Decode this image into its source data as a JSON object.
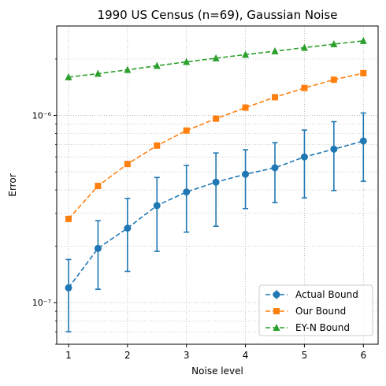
{
  "chart_data": {
    "type": "line",
    "title": "1990 US Census (n=69), Gaussian Noise",
    "xlabel": "Noise level",
    "ylabel": "Error",
    "yscale": "log",
    "xlim": [
      0.8,
      6.25
    ],
    "ylim": [
      6e-08,
      3e-06
    ],
    "grid": "both (major and minor, dotted)",
    "legend_placement": "lower-right",
    "x": [
      1.0,
      1.5,
      2.0,
      2.5,
      3.0,
      3.5,
      4.0,
      4.5,
      5.0,
      5.5,
      6.0
    ],
    "xticks": [
      {
        "value": 1,
        "label": "1"
      },
      {
        "value": 2,
        "label": "2"
      },
      {
        "value": 3,
        "label": "3"
      },
      {
        "value": 4,
        "label": "4"
      },
      {
        "value": 5,
        "label": "5"
      },
      {
        "value": 6,
        "label": "6"
      }
    ],
    "yticks": [
      {
        "value": 1e-07,
        "label": "10⁻⁷"
      },
      {
        "value": 1e-06,
        "label": "10⁻⁶"
      }
    ],
    "series": [
      {
        "name": "Actual Bound",
        "color": "#1f77b4",
        "marker": "circle",
        "values": [
          1.2e-07,
          1.95e-07,
          2.5e-07,
          3.3e-07,
          3.9e-07,
          4.4e-07,
          4.85e-07,
          5.25e-07,
          6e-07,
          6.6e-07,
          7.3e-07
        ],
        "err_low": [
          7e-08,
          1.18e-07,
          1.47e-07,
          1.88e-07,
          2.38e-07,
          2.56e-07,
          3.18e-07,
          3.42e-07,
          3.63e-07,
          3.97e-07,
          4.45e-07
        ],
        "err_high": [
          1.7e-07,
          2.74e-07,
          3.6e-07,
          4.66e-07,
          5.4e-07,
          6.3e-07,
          6.55e-07,
          7.15e-07,
          8.35e-07,
          9.25e-07,
          1.03e-06
        ]
      },
      {
        "name": "Our Bound",
        "color": "#ff7f0e",
        "marker": "square",
        "values": [
          2.8e-07,
          4.2e-07,
          5.5e-07,
          6.9e-07,
          8.3e-07,
          9.6e-07,
          1.1e-06,
          1.25e-06,
          1.4e-06,
          1.55e-06,
          1.68e-06
        ]
      },
      {
        "name": "EY-N Bound",
        "color": "#2ca02c",
        "marker": "triangle",
        "values": [
          1.6e-06,
          1.67e-06,
          1.75e-06,
          1.84e-06,
          1.93e-06,
          2.02e-06,
          2.11e-06,
          2.2e-06,
          2.3e-06,
          2.4e-06,
          2.5e-06
        ]
      }
    ]
  }
}
